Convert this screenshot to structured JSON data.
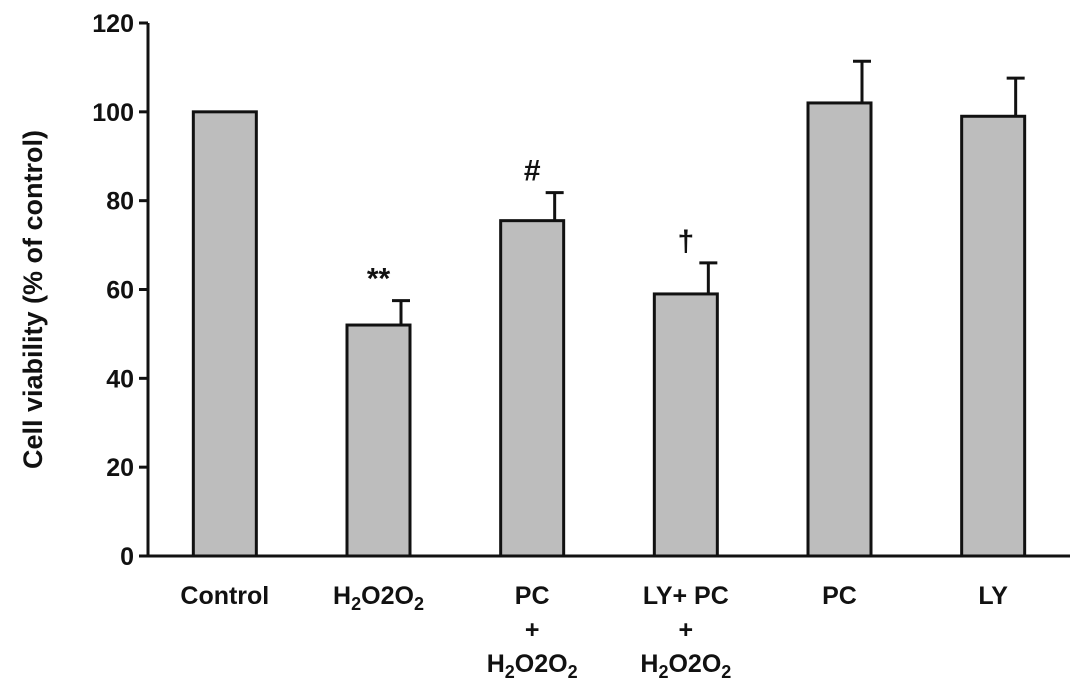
{
  "chart_data": {
    "type": "bar",
    "ylabel": "Cell viability  (% of control)",
    "ylim": [
      0,
      120
    ],
    "yticks": [
      0,
      20,
      40,
      60,
      80,
      100,
      120
    ],
    "grid": false,
    "categories": [
      {
        "lines": [
          "Control"
        ]
      },
      {
        "lines": [
          "H2O2"
        ]
      },
      {
        "lines": [
          "PC",
          "+",
          "H2O2"
        ]
      },
      {
        "lines": [
          "LY+ PC",
          "+",
          "H2O2"
        ]
      },
      {
        "lines": [
          "PC"
        ]
      },
      {
        "lines": [
          "LY"
        ]
      }
    ],
    "values": [
      100,
      52,
      75.5,
      59,
      102,
      99
    ],
    "errors": [
      0,
      5.5,
      6.3,
      7,
      9.4,
      8.6
    ],
    "significance": [
      "",
      "**",
      "#",
      "†",
      "",
      ""
    ],
    "colors": {
      "bar": "#bdbdbd",
      "outline": "#111111"
    }
  }
}
